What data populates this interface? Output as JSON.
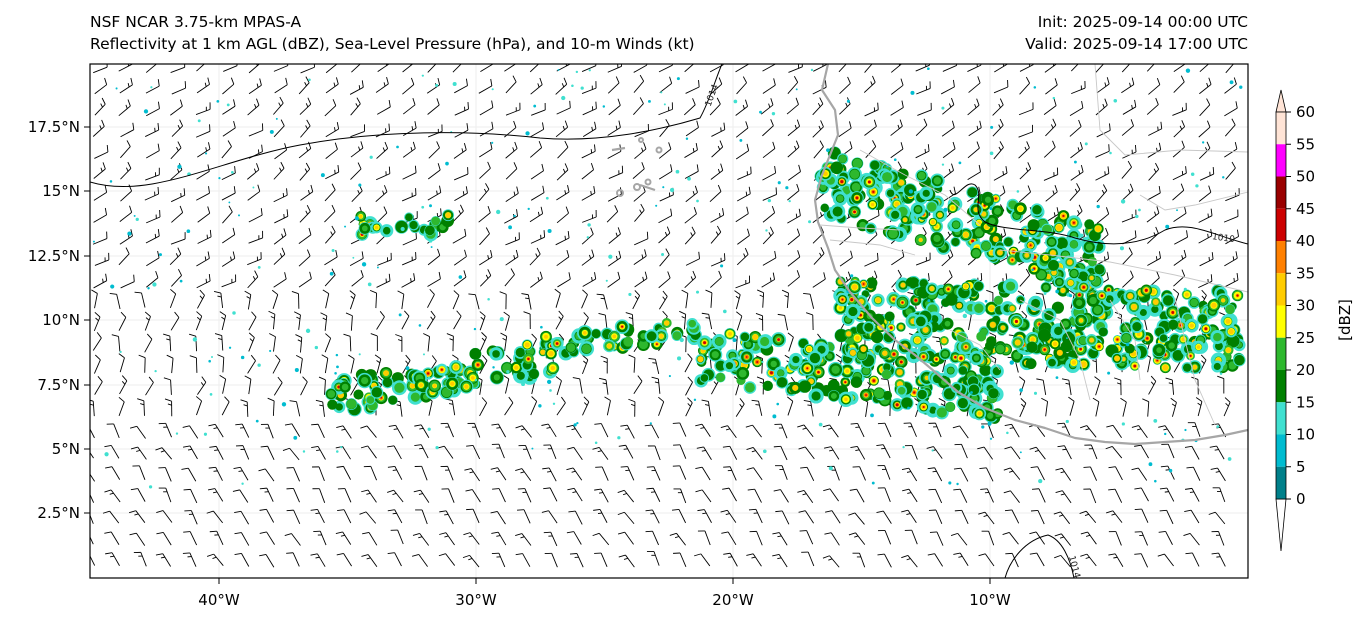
{
  "title": {
    "line1": "NSF NCAR 3.75-km MPAS-A",
    "line2": "Reflectivity at 1 km AGL (dBZ), Sea-Level Pressure (hPa), and 10-m Winds (kt)",
    "init": "Init: 2025-09-14 00:00 UTC",
    "valid": "Valid: 2025-09-14 17:00 UTC"
  },
  "map": {
    "lat_ticks": [
      "17.5°N",
      "15°N",
      "12.5°N",
      "10°N",
      "7.5°N",
      "5°N",
      "2.5°N"
    ],
    "lon_ticks": [
      "40°W",
      "30°W",
      "20°W",
      "10°W"
    ],
    "isobar_labels": [
      "1014",
      "1010",
      "1014"
    ],
    "coast_color": "#a6a6a6",
    "border_color": "#c8c8c8",
    "isobar_color": "#000000"
  },
  "colorbar": {
    "label": "[dBZ]",
    "ticks": [
      "60",
      "55",
      "50",
      "45",
      "40",
      "35",
      "30",
      "25",
      "20",
      "15",
      "10",
      "5",
      "0"
    ],
    "colors": [
      "#ffffff",
      "#00808a",
      "#00bcd0",
      "#40e0d0",
      "#008000",
      "#2eb82e",
      "#ffff00",
      "#ffcc00",
      "#ff8000",
      "#cc0000",
      "#990000",
      "#ff00ff",
      "#ffe4d6"
    ]
  }
}
